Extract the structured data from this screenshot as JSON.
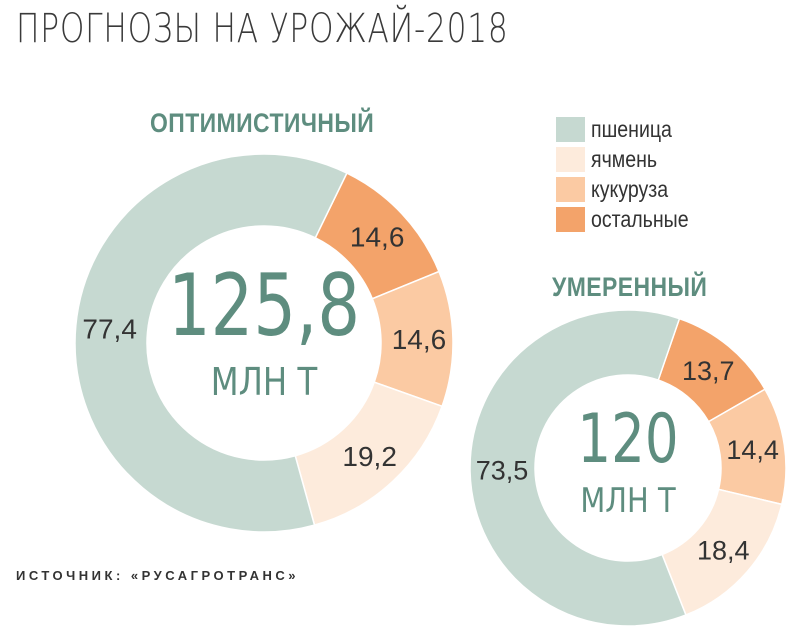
{
  "title": "ПРОГНОЗЫ НА УРОЖАЙ-2018",
  "source": "ИСТОЧНИК: «РУСАГРОТРАНС»",
  "legend": [
    {
      "label": "пшеница",
      "color": "#c6d9d1"
    },
    {
      "label": "ячмень",
      "color": "#fdebdc"
    },
    {
      "label": "кукуруза",
      "color": "#fbcaa3"
    },
    {
      "label": "остальные",
      "color": "#f3a36a"
    }
  ],
  "chart_data": [
    {
      "type": "pie",
      "title": "ОПТИМИСТИЧНЫЙ",
      "total": "125,8",
      "unit": "МЛН Т",
      "categories": [
        "пшеница",
        "ячмень",
        "кукуруза",
        "остальные"
      ],
      "values": [
        77.4,
        19.2,
        14.6,
        14.6
      ],
      "value_labels": [
        "77,4",
        "19,2",
        "14,6",
        "14,6"
      ]
    },
    {
      "type": "pie",
      "title": "УМЕРЕННЫЙ",
      "total": "120",
      "unit": "МЛН Т",
      "categories": [
        "пшеница",
        "ячмень",
        "кукуруза",
        "остальные"
      ],
      "values": [
        73.5,
        18.4,
        14.4,
        13.7
      ],
      "value_labels": [
        "73,5",
        "18,4",
        "14,4",
        "13,7"
      ]
    }
  ]
}
